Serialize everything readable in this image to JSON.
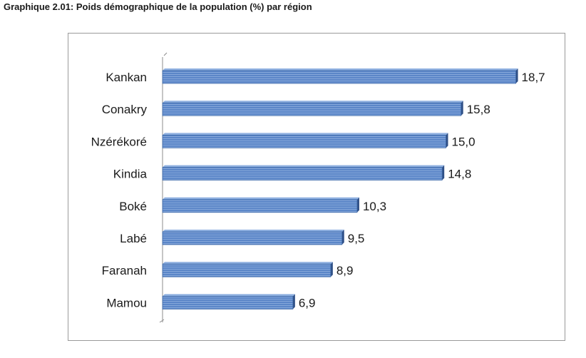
{
  "title": "Graphique 2.01: Poids démographique de la population (%) par région",
  "chart_data": {
    "type": "bar",
    "orientation": "horizontal",
    "title": "Graphique 2.01: Poids démographique de la population (%) par région",
    "categories": [
      "Kankan",
      "Conakry",
      "Nzérékoré",
      "Kindia",
      "Boké",
      "Labé",
      "Faranah",
      "Mamou"
    ],
    "values": [
      18.7,
      15.8,
      15.0,
      14.8,
      10.3,
      9.5,
      8.9,
      6.9
    ],
    "value_labels": [
      "18,7",
      "15,8",
      "15,0",
      "14,8",
      "10,3",
      "9,5",
      "8,9",
      "6,9"
    ],
    "xlim": [
      0,
      20
    ],
    "grid": false,
    "legend": "none",
    "bar_color": "#5b86c8"
  }
}
